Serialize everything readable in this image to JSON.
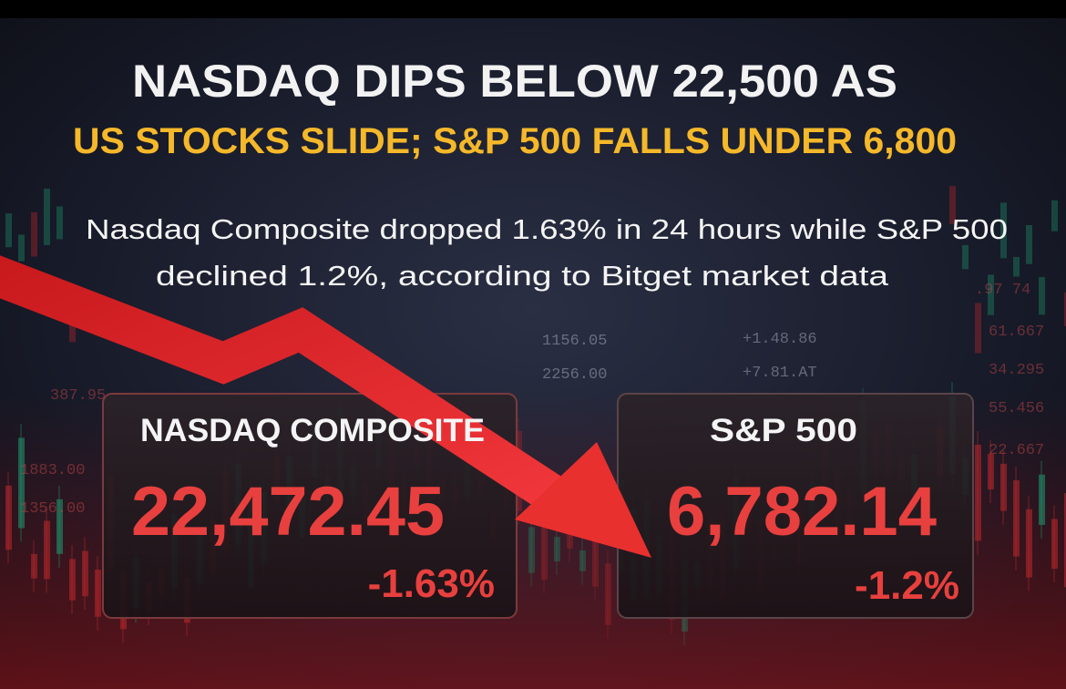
{
  "headline": {
    "line1": "NASDAQ DIPS BELOW 22,500 AS",
    "line2": "US STOCKS SLIDE; S&P 500 FALLS UNDER 6,800"
  },
  "subheadline": {
    "lines": [
      "Nasdaq Composite dropped 1.63% in 24 hours while S&P 500",
      "declined 1.2%, according to Bitget market data"
    ]
  },
  "cards": [
    {
      "name": "NASDAQ COMPOSITE",
      "value": "22,472.45",
      "change": "-1.63%"
    },
    {
      "name": "S&P 500",
      "value": "6,782.14",
      "change": "-1.2%"
    }
  ],
  "background_figures": [
    ".97 74",
    "1156.05",
    "+1.48.86",
    "61.667",
    "2256.00",
    "+7.81.AT",
    "34.295",
    "55.456",
    "22.667",
    "387.95",
    "1883.00",
    "1356.00"
  ]
}
